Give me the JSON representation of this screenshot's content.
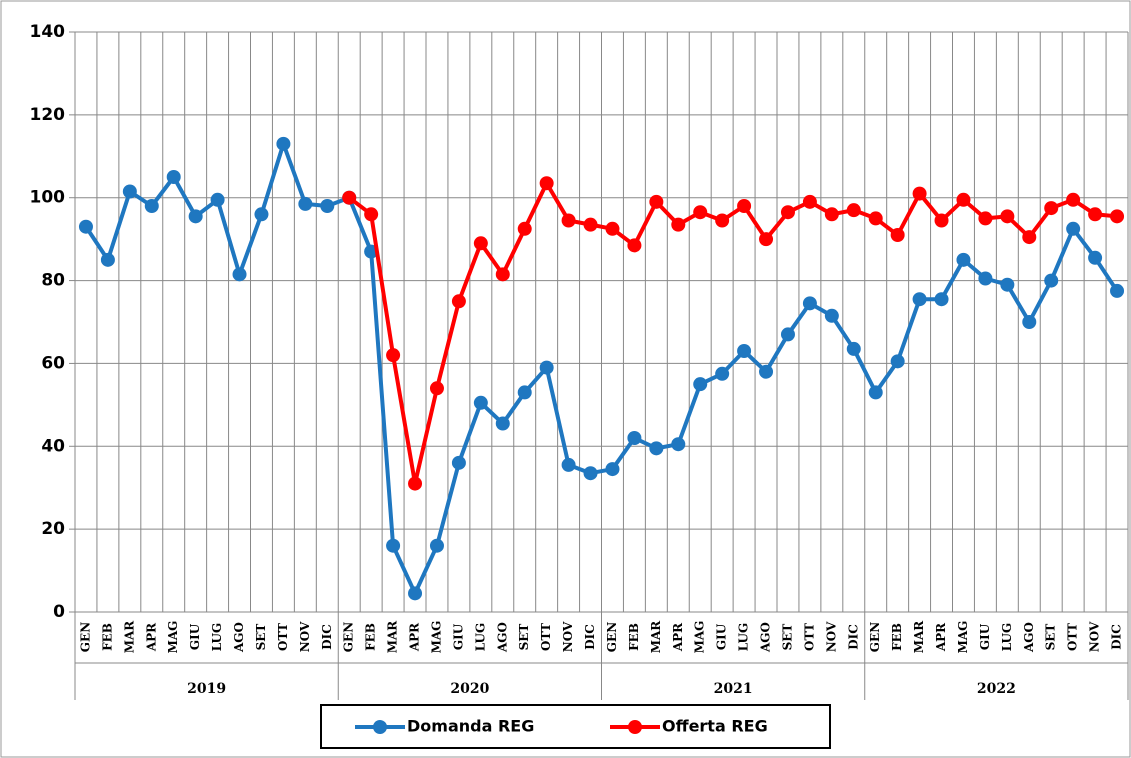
{
  "chart_data": {
    "type": "line",
    "categories": [
      "GEN",
      "FEB",
      "MAR",
      "APR",
      "MAG",
      "GIU",
      "LUG",
      "AGO",
      "SET",
      "OTT",
      "NOV",
      "DIC",
      "GEN",
      "FEB",
      "MAR",
      "APR",
      "MAG",
      "GIU",
      "LUG",
      "AGO",
      "SET",
      "OTT",
      "NOV",
      "DIC",
      "GEN",
      "FEB",
      "MAR",
      "APR",
      "MAG",
      "GIU",
      "LUG",
      "AGO",
      "SET",
      "OTT",
      "NOV",
      "DIC",
      "GEN",
      "FEB",
      "MAR",
      "APR",
      "MAG",
      "GIU",
      "LUG",
      "AGO",
      "SET",
      "OTT",
      "NOV",
      "DIC"
    ],
    "years": [
      "2019",
      "2020",
      "2021",
      "2022"
    ],
    "series": [
      {
        "name": "Domanda REG",
        "color": "#1f77c0",
        "values": [
          93,
          85,
          101.5,
          98,
          105,
          95.5,
          99.5,
          81.5,
          96,
          113,
          98.5,
          98,
          100,
          87,
          16,
          4.5,
          16,
          36,
          50.5,
          45.5,
          53,
          59,
          35.5,
          33.5,
          34.5,
          42,
          39.5,
          40.5,
          55,
          57.5,
          63,
          58,
          67,
          74.5,
          71.5,
          63.5,
          53,
          60.5,
          75.5,
          75.5,
          85,
          80.5,
          79,
          70,
          80,
          92.5,
          85.5,
          77.5
        ]
      },
      {
        "name": "Offerta REG",
        "color": "#ff0000",
        "values": [
          null,
          null,
          null,
          null,
          null,
          null,
          null,
          null,
          null,
          null,
          null,
          null,
          100,
          96,
          62,
          31,
          54,
          75,
          89,
          81.5,
          92.5,
          103.5,
          94.5,
          93.5,
          92.5,
          88.5,
          99,
          93.5,
          96.5,
          94.5,
          98,
          90,
          96.5,
          99,
          96,
          97,
          95,
          91,
          101,
          94.5,
          99.5,
          95,
          95.5,
          90.5,
          97.5,
          99.5,
          96,
          95.5
        ]
      }
    ],
    "ylim": [
      0,
      140
    ],
    "yticks": [
      0,
      20,
      40,
      60,
      80,
      100,
      120,
      140
    ],
    "grid": true,
    "legend": "bottom"
  }
}
